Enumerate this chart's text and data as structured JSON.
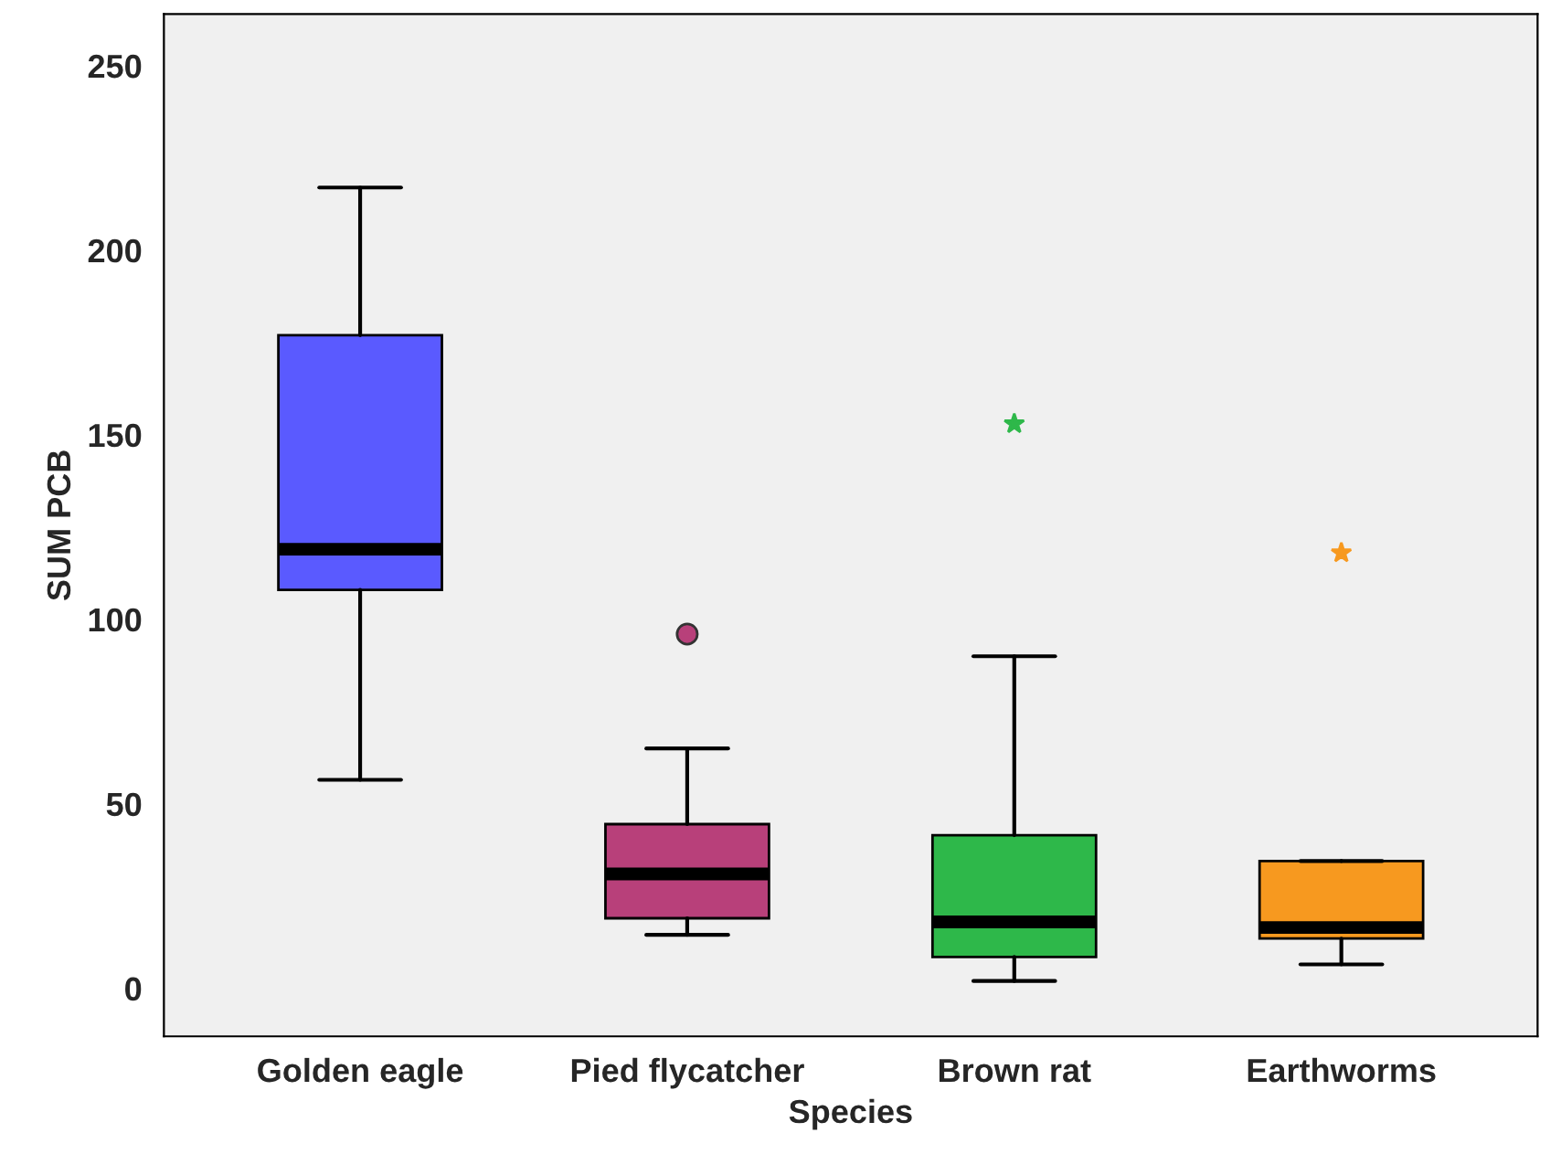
{
  "chart_data": {
    "type": "box",
    "xlabel": "Species",
    "ylabel": "SUM PCB",
    "categories": [
      "Golden eagle",
      "Pied flycatcher",
      "Brown rat",
      "Earthworms"
    ],
    "ylim": [
      -13,
      264
    ],
    "yticks": [
      0,
      50,
      100,
      150,
      200,
      250
    ],
    "grid": false,
    "legend": false,
    "series": [
      {
        "color": "#5a5aff",
        "marker": "circle",
        "boxes": [
          {
            "low": 56.5,
            "q1": 108,
            "median": 119,
            "q3": 177,
            "high": 217
          },
          null,
          null,
          null
        ]
      },
      {
        "color": "#b8407a",
        "marker": "circle",
        "boxes": [
          null,
          {
            "low": 14.5,
            "q1": 19,
            "median": 31,
            "q3": 44.5,
            "high": 65,
            "outliers": [
              96
            ]
          },
          null,
          null
        ]
      },
      {
        "color": "#2eb84a",
        "marker": "star",
        "boxes": [
          null,
          null,
          {
            "low": 2,
            "q1": 8.5,
            "median": 18,
            "q3": 41.5,
            "high": 90,
            "outliers": [
              153
            ]
          },
          null
        ]
      },
      {
        "color": "#f7991f",
        "marker": "star",
        "boxes": [
          null,
          null,
          null,
          {
            "low": 6.5,
            "q1": 13.5,
            "median": 16.5,
            "q3": 34.5,
            "high": 34.5,
            "outliers": [
              118
            ]
          }
        ]
      }
    ]
  }
}
